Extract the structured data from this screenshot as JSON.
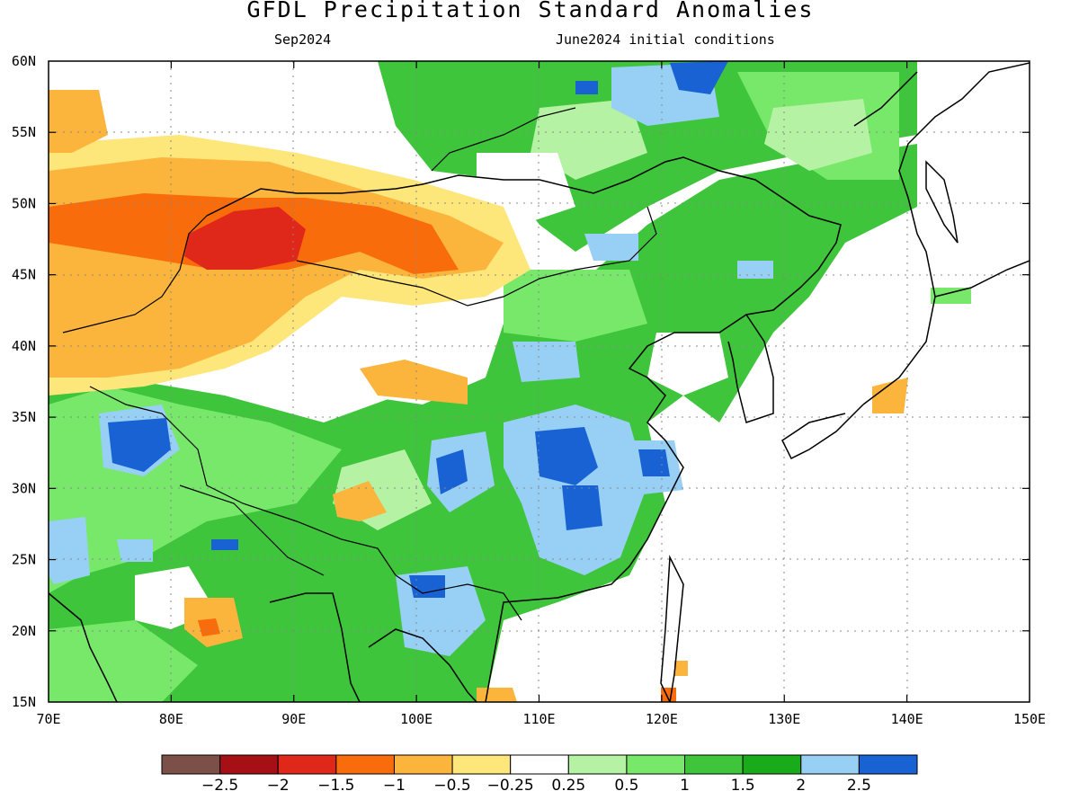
{
  "title": "GFDL Precipitation Standard Anomalies",
  "subtitle_left": "Sep2024",
  "subtitle_right": "June2024 initial conditions",
  "map": {
    "lon_range": [
      70,
      150
    ],
    "lat_range": [
      15,
      60
    ],
    "x_ticks": [
      "70E",
      "80E",
      "90E",
      "100E",
      "110E",
      "120E",
      "130E",
      "140E",
      "150E"
    ],
    "y_ticks": [
      "15N",
      "20N",
      "25N",
      "30N",
      "35N",
      "40N",
      "45N",
      "50N",
      "55N",
      "60N"
    ],
    "gridlines": "dotted"
  },
  "colorbar": {
    "colors": [
      "#7a5048",
      "#a50f15",
      "#e0281a",
      "#f86c0c",
      "#fcb53c",
      "#fde67a",
      "#ffffff",
      "#b5f2a4",
      "#78e86b",
      "#3ec53b",
      "#1aab1a",
      "#97cff5",
      "#1862d4"
    ],
    "labels": [
      "−2.5",
      "−2",
      "−1.5",
      "−1",
      "−0.5",
      "−0.25",
      "0.25",
      "0.5",
      "1",
      "1.5",
      "2",
      "2.5"
    ]
  }
}
